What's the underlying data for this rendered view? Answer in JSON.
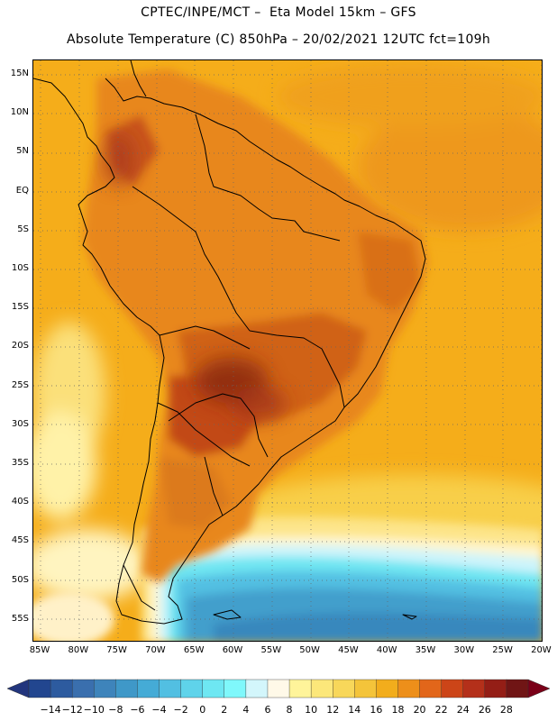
{
  "header": {
    "line1": "CPTEC/INPE/MCT –  Eta Model 15km – GFS",
    "line2": "Absolute Temperature (C) 850hPa – 20/02/2021 12UTC fct=109h"
  },
  "map": {
    "region": "South America",
    "lat_labels": [
      "15N",
      "10N",
      "5N",
      "EQ",
      "5S",
      "10S",
      "15S",
      "20S",
      "25S",
      "30S",
      "35S",
      "40S",
      "45S",
      "50S",
      "55S"
    ],
    "lon_labels": [
      "85W",
      "80W",
      "75W",
      "70W",
      "65W",
      "60W",
      "55W",
      "50W",
      "45W",
      "40W",
      "35W",
      "30W",
      "25W",
      "20W"
    ],
    "land_icon": "continent-outline",
    "colors": {
      "ocean_warm": "#f5ad1a",
      "land_warm": "#e8871c",
      "land_hot": "#c9541a",
      "core_hot": "#8b2a12",
      "coastal_cool": "#fbe58a",
      "cold_ocean": "#3f9fc9"
    }
  },
  "colorbar": {
    "labels": [
      "-14",
      "-12",
      "-10",
      "-8",
      "-6",
      "-4",
      "-2",
      "0",
      "2",
      "4",
      "6",
      "8",
      "10",
      "12",
      "14",
      "16",
      "18",
      "20",
      "22",
      "24",
      "26",
      "28"
    ],
    "low_color": "#22357d",
    "high_color": "#7a0018",
    "colors": [
      "#22468f",
      "#2d5b9f",
      "#3a6fae",
      "#3e84bb",
      "#3f98c8",
      "#45abd6",
      "#52bfe2",
      "#5fd3ea",
      "#6ee7f2",
      "#7ff8fb",
      "#d3f6fb",
      "#fff9e8",
      "#fff49a",
      "#fce77a",
      "#f8d75a",
      "#f4c43a",
      "#f2ad1c",
      "#ed8f1a",
      "#e2661a",
      "#cc4518",
      "#b4301a",
      "#941e16",
      "#701515"
    ]
  }
}
